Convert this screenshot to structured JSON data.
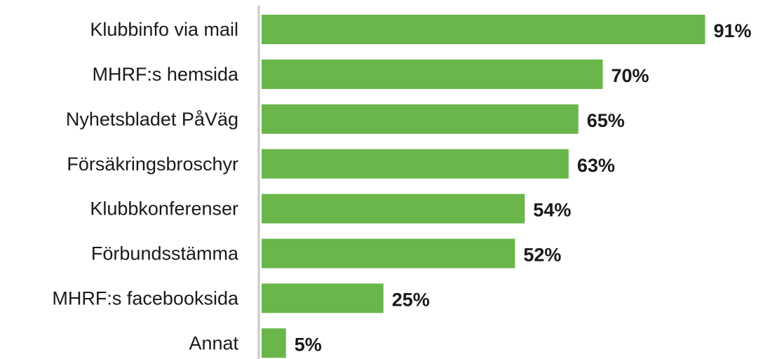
{
  "chart_data": {
    "type": "bar",
    "categories": [
      "Klubbinfo via mail",
      "MHRF:s hemsida",
      "Nyhetsbladet PåVäg",
      "Försäkringsbroschyr",
      "Klubbkonferenser",
      "Förbundsstämma",
      "MHRF:s facebooksida",
      "Annat"
    ],
    "values": [
      91,
      70,
      65,
      63,
      54,
      52,
      25,
      5
    ],
    "value_labels": [
      "91%",
      "70%",
      "65%",
      "63%",
      "54%",
      "52%",
      "25%",
      "5%"
    ],
    "color": "#6ab64b"
  }
}
